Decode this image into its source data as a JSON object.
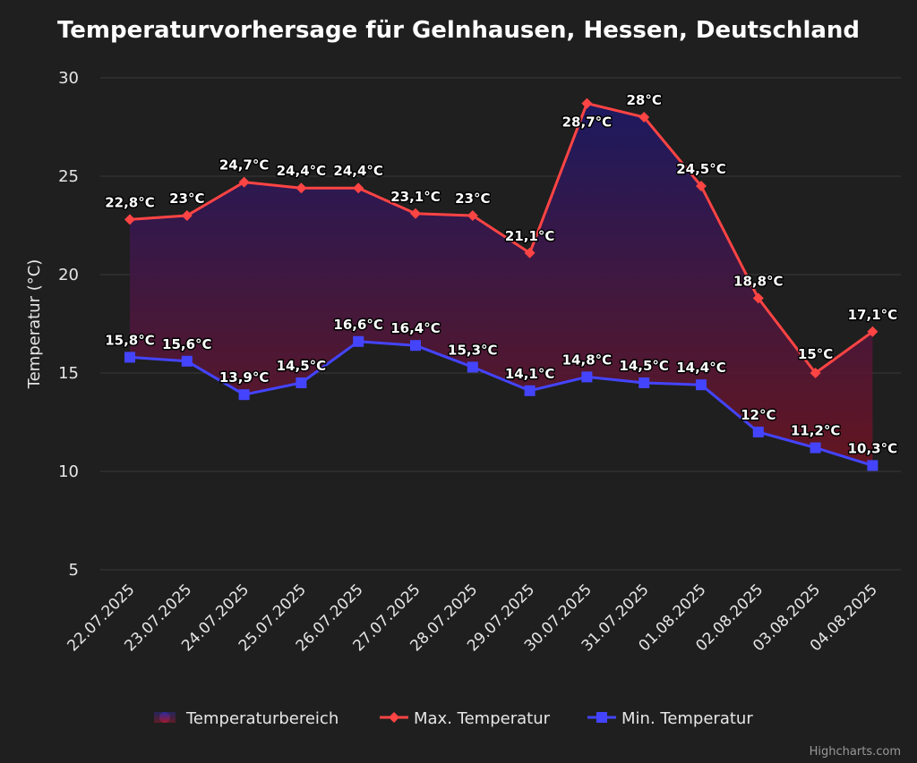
{
  "chart_data": {
    "type": "line",
    "title": "Temperaturvorhersage für Gelnhausen, Hessen, Deutschland",
    "ylabel": "Temperatur (°C)",
    "xlabel": "",
    "ylim": [
      5,
      30
    ],
    "yticks": [
      "30",
      "25",
      "20",
      "15",
      "10",
      "5"
    ],
    "grid": true,
    "legend_position": "bottom-center",
    "categories": [
      "22.07.2025",
      "23.07.2025",
      "24.07.2025",
      "25.07.2025",
      "26.07.2025",
      "27.07.2025",
      "28.07.2025",
      "29.07.2025",
      "30.07.2025",
      "31.07.2025",
      "01.08.2025",
      "02.08.2025",
      "03.08.2025",
      "04.08.2025"
    ],
    "series": [
      {
        "name": "Temperaturbereich",
        "kind": "arearange",
        "color_top": "#1c1966",
        "color_bottom": "#6b1520"
      },
      {
        "name": "Max. Temperatur",
        "color": "#ff4444",
        "marker": "diamond",
        "values": [
          22.8,
          23,
          24.7,
          24.4,
          24.4,
          23.1,
          23,
          21.1,
          28.7,
          28,
          24.5,
          18.8,
          15,
          17.1
        ],
        "labels": [
          "22,8°C",
          "23°C",
          "24,7°C",
          "24,4°C",
          "24,4°C",
          "23,1°C",
          "23°C",
          "21,1°C",
          "28,7°C",
          "28°C",
          "24,5°C",
          "18,8°C",
          "15°C",
          "17,1°C"
        ]
      },
      {
        "name": "Min. Temperatur",
        "color": "#4444ff",
        "marker": "square",
        "values": [
          15.8,
          15.6,
          13.9,
          14.5,
          16.6,
          16.4,
          15.3,
          14.1,
          14.8,
          14.5,
          14.4,
          12,
          11.2,
          10.3
        ],
        "labels": [
          "15,8°C",
          "15,6°C",
          "13,9°C",
          "14,5°C",
          "16,6°C",
          "16,4°C",
          "15,3°C",
          "14,1°C",
          "14,8°C",
          "14,5°C",
          "14,4°C",
          "12°C",
          "11,2°C",
          "10,3°C"
        ]
      }
    ]
  },
  "credits": "Highcharts.com"
}
